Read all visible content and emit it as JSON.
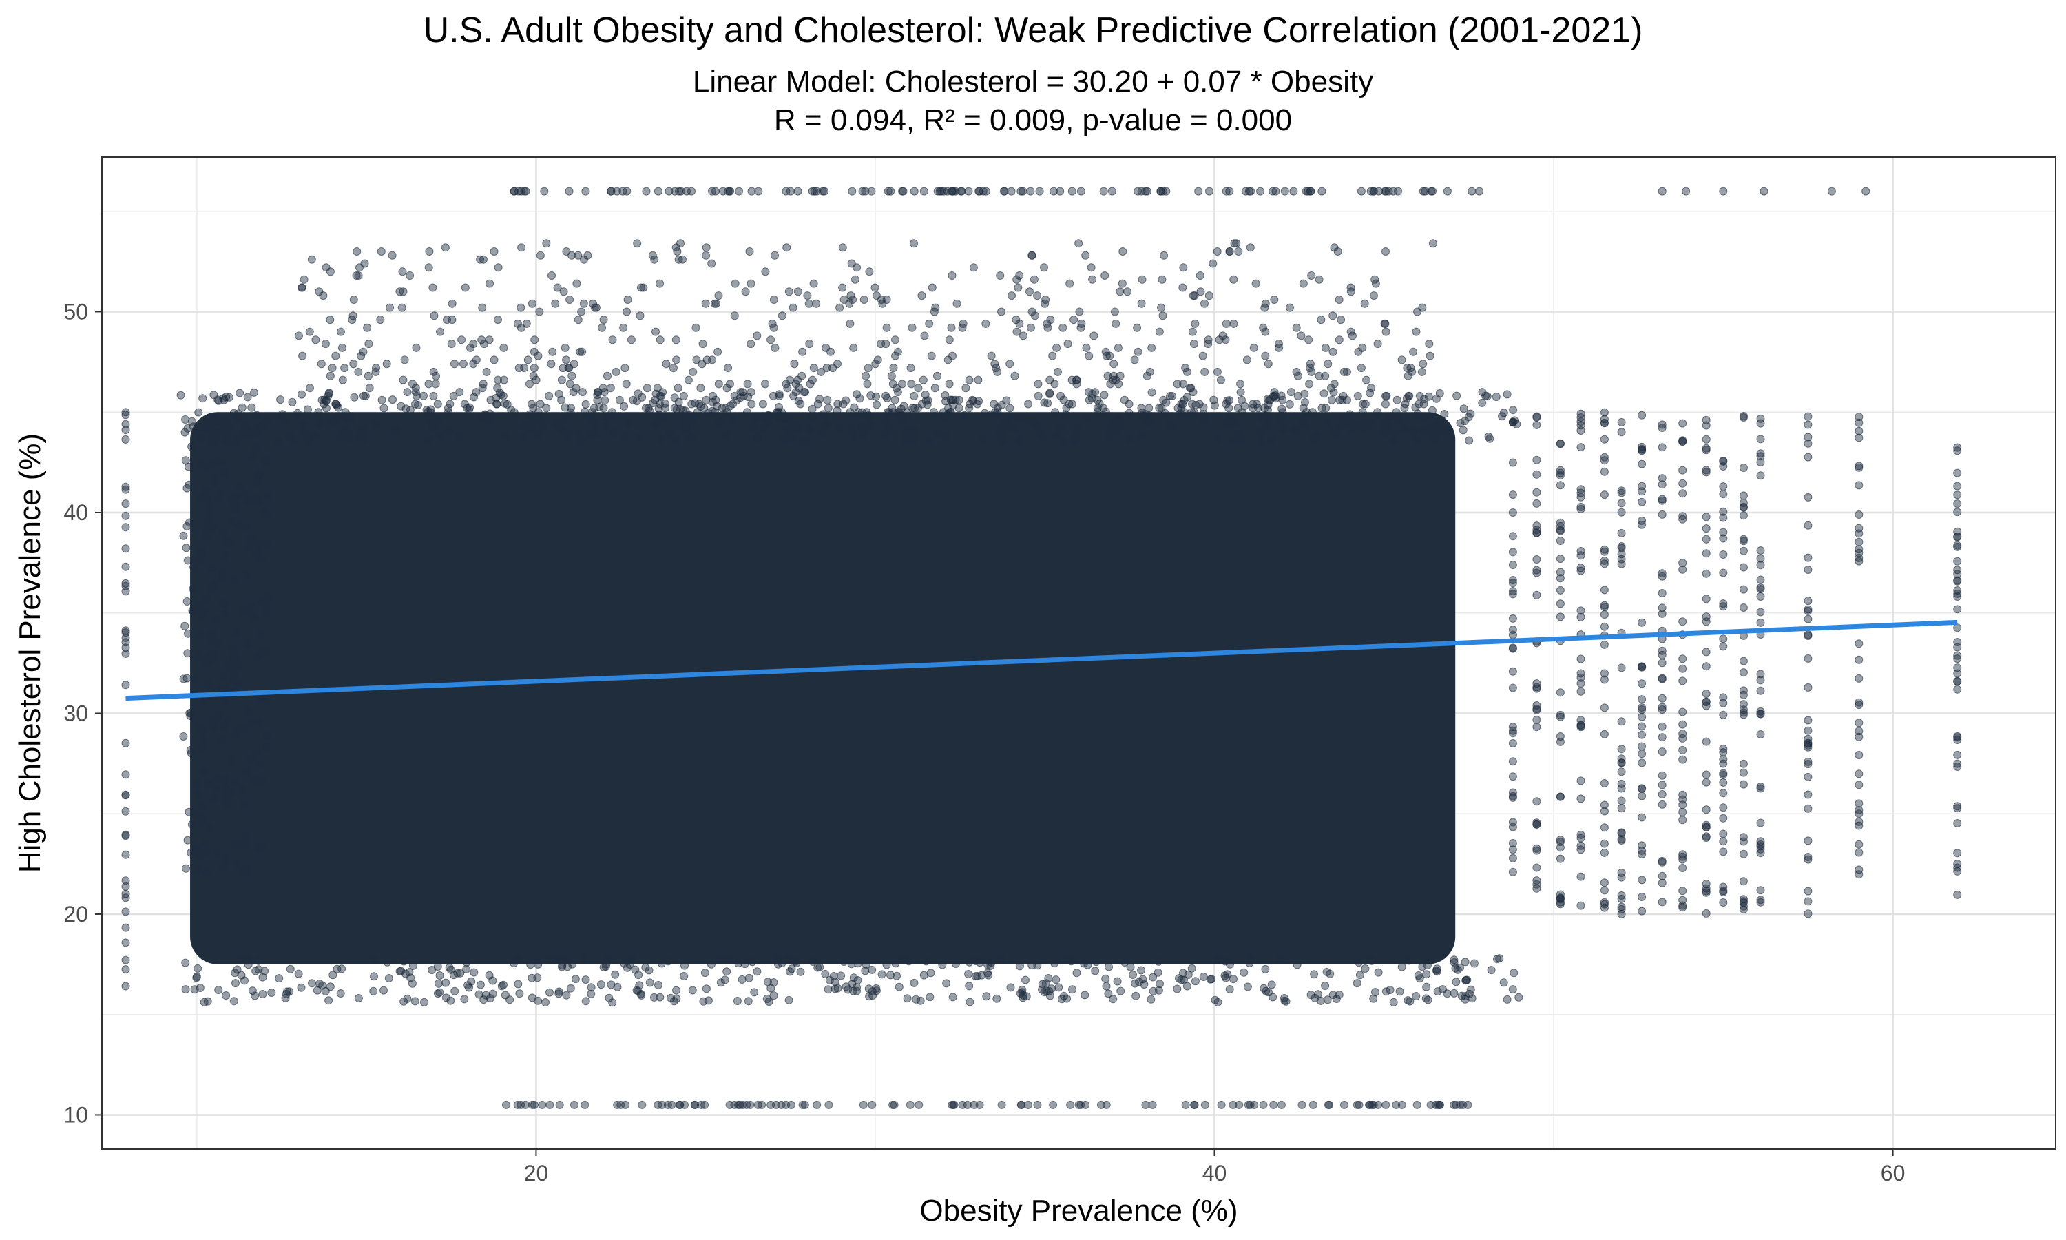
{
  "chart_data": {
    "type": "scatter",
    "title": "U.S. Adult Obesity and Cholesterol: Weak Predictive Correlation (2001-2021)",
    "subtitle_lines": [
      "Linear Model: Cholesterol = 30.20 + 0.07 * Obesity",
      "R = 0.094, R² = 0.009, p-value = 0.000"
    ],
    "xlabel": "Obesity Prevalence (%)",
    "ylabel": "High Cholesterol Prevalence (%)",
    "xlim": [
      7.2,
      64.8
    ],
    "ylim": [
      8.3,
      57.7
    ],
    "x_ticks": [
      20,
      40,
      60
    ],
    "y_ticks": [
      10,
      20,
      30,
      40,
      50
    ],
    "grid": true,
    "point_color": "#1f2d3d",
    "point_alpha": 0.45,
    "regression_line": {
      "color": "#2e86de",
      "intercept": 30.2,
      "slope": 0.07,
      "x": [
        7.9,
        61.9
      ],
      "y": [
        30.75,
        34.53
      ]
    },
    "point_clusters": [
      {
        "region": "dense core",
        "x": [
          9.5,
          48.5
        ],
        "y": [
          16.0,
          45.0
        ]
      },
      {
        "region": "upper band",
        "x": [
          13.0,
          46.0
        ],
        "y": [
          45.0,
          53.5
        ]
      },
      {
        "region": "top row",
        "x": [
          19.0,
          48.5
        ],
        "y": [
          56.0,
          56.0
        ]
      },
      {
        "region": "bottom row",
        "x": [
          19.0,
          47.5
        ],
        "y": [
          10.5,
          10.5
        ]
      },
      {
        "region": "low-obesity column",
        "x": [
          7.9,
          7.9
        ],
        "y": [
          16.0,
          45.8
        ]
      },
      {
        "region": "high-obesity column",
        "x": [
          61.9,
          61.9
        ],
        "y": [
          20.6,
          43.3
        ]
      }
    ]
  }
}
